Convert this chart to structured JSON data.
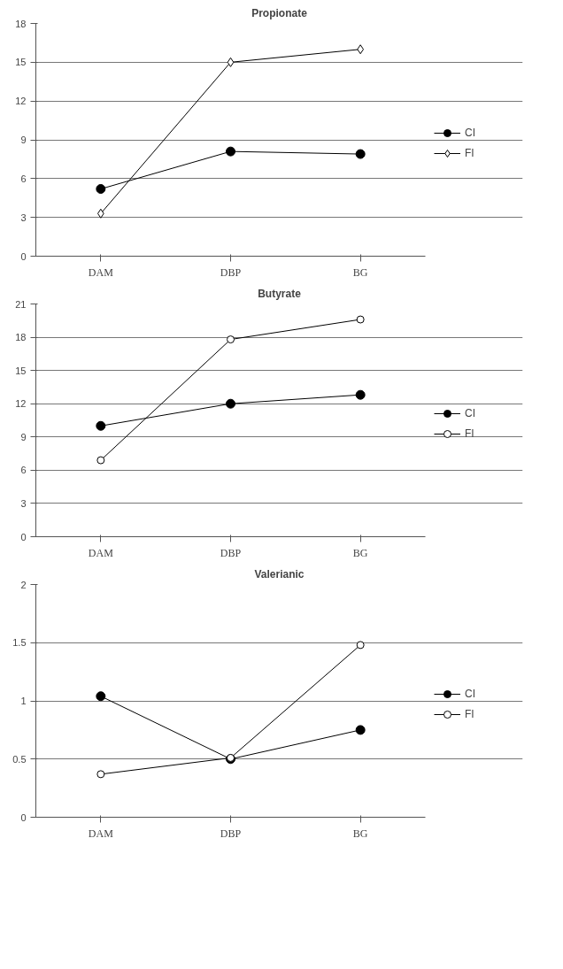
{
  "chart_data": [
    {
      "type": "line",
      "title": "Propionate",
      "categories": [
        "DAM",
        "DBP",
        "BG"
      ],
      "ylim": [
        0,
        18
      ],
      "yticks": [
        0,
        3,
        6,
        9,
        12,
        15,
        18
      ],
      "grid": "y",
      "legend": "right",
      "series": [
        {
          "name": "CI",
          "color": "#000000",
          "marker": "circle",
          "values": [
            5.2,
            8.1,
            7.9
          ]
        },
        {
          "name": "FI",
          "color": "#000000",
          "marker": "diamond",
          "values": [
            3.3,
            15.0,
            16.0
          ]
        }
      ]
    },
    {
      "type": "line",
      "title": "Butyrate",
      "categories": [
        "DAM",
        "DBP",
        "BG"
      ],
      "ylim": [
        0,
        21
      ],
      "yticks": [
        0,
        3,
        6,
        9,
        12,
        15,
        18,
        21
      ],
      "grid": "y",
      "legend": "right",
      "series": [
        {
          "name": "CI",
          "color": "#000000",
          "marker": "circle",
          "values": [
            10.0,
            12.0,
            12.8
          ]
        },
        {
          "name": "FI",
          "color": "#000000",
          "marker": "circle",
          "values": [
            6.9,
            17.8,
            19.6
          ]
        }
      ]
    },
    {
      "type": "line",
      "title": "Valerianic",
      "categories": [
        "DAM",
        "DBP",
        "BG"
      ],
      "ylim": [
        0,
        2
      ],
      "yticks": [
        0,
        0.5,
        1,
        1.5,
        2
      ],
      "grid": "y",
      "legend": "right",
      "series": [
        {
          "name": "CI",
          "color": "#000000",
          "marker": "circle",
          "values": [
            1.04,
            0.5,
            0.75
          ]
        },
        {
          "name": "FI",
          "color": "#000000",
          "marker": "circle",
          "values": [
            0.37,
            0.51,
            1.48
          ]
        }
      ]
    }
  ]
}
